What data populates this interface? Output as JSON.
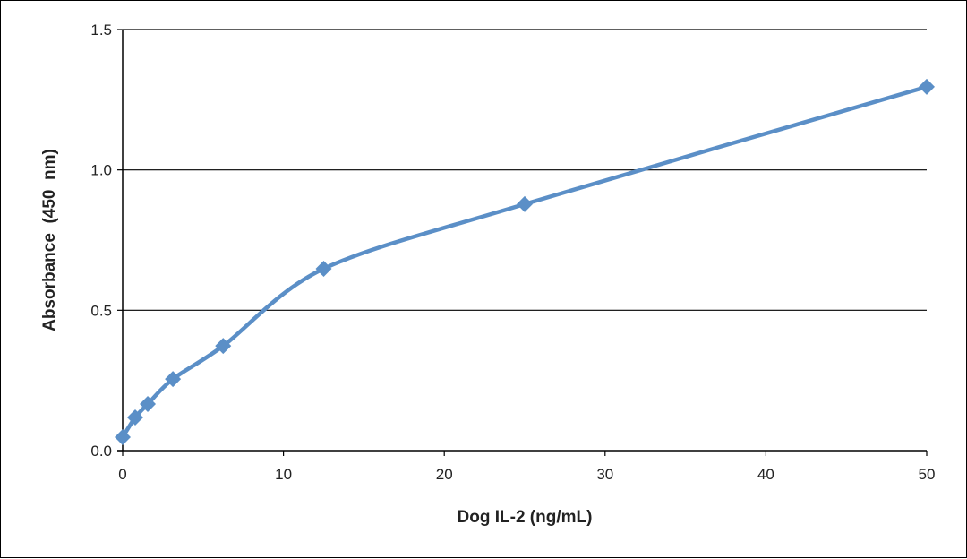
{
  "chart_data": {
    "type": "line",
    "title": "",
    "xlabel": "Dog IL-2 (ng/mL)",
    "ylabel": "Absorbance  (450  nm)",
    "xlim": [
      0,
      50
    ],
    "ylim": [
      0,
      1.5
    ],
    "xticks": [
      0,
      10,
      20,
      30,
      40,
      50
    ],
    "xtick_labels": [
      "0",
      "10",
      "20",
      "30",
      "40",
      "50"
    ],
    "yticks": [
      0,
      0.5,
      1.0,
      1.5
    ],
    "ytick_labels": [
      "0.0",
      "0.5",
      "1.0",
      "1.5"
    ],
    "grid": "horizontal",
    "legend": "none",
    "series": [
      {
        "name": "Dog IL-2",
        "color": "#5b8fc7",
        "marker": "diamond",
        "smooth": true,
        "x": [
          0,
          0.78,
          1.56,
          3.125,
          6.25,
          12.5,
          25,
          50
        ],
        "y": [
          0.048,
          0.118,
          0.166,
          0.255,
          0.373,
          0.648,
          0.878,
          1.296
        ]
      }
    ]
  }
}
